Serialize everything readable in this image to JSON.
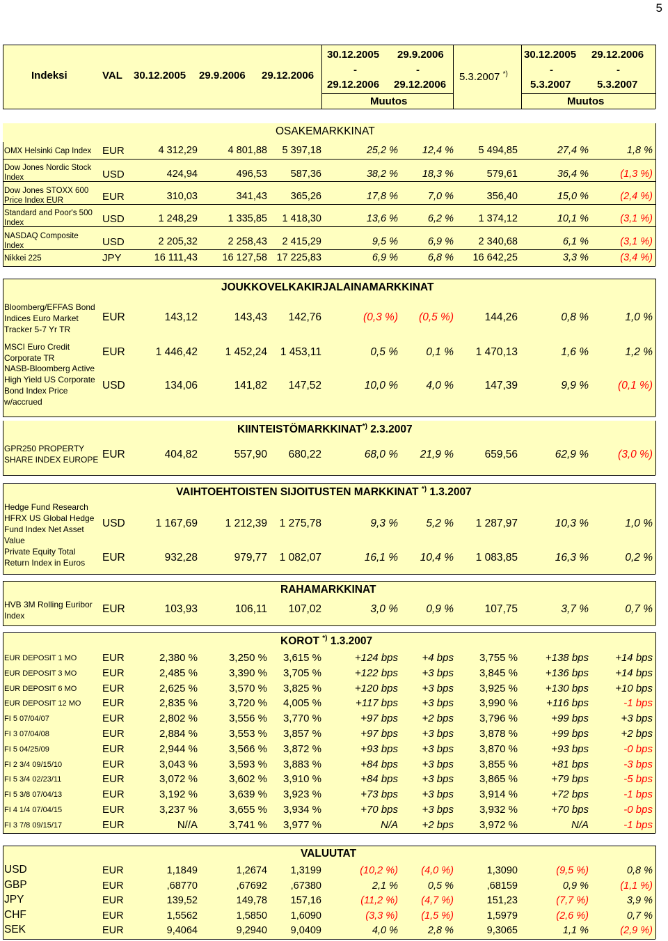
{
  "page_number": "5",
  "header": {
    "indeksi": "Indeksi",
    "val": "VAL",
    "d1": "30.12.2005",
    "d2": "29.9.2006",
    "d3": "29.12.2006",
    "range1_top": "30.12.2005",
    "range1_dash": "-",
    "range1_bottom": "29.12.2006",
    "range2_top": "29.9.2006",
    "range2_dash": "-",
    "range2_bottom": "29.12.2006",
    "mid_date": "5.3.2007",
    "mid_sup": "*)",
    "range3_top": "30.12.2005",
    "range3_dash": "-",
    "range3_bottom": "5.3.2007",
    "range4_top": "29.12.2006",
    "range4_dash": "-",
    "range4_bottom": "5.3.2007",
    "muutos1": "Muutos",
    "muutos2": "Muutos"
  },
  "sections": {
    "osake": "OSAKEMARKKINAT",
    "joukko": "JOUKKOVELKAKIRJALAINAMARKKINAT",
    "kiint": "KIINTEISTÖMARKKINAT",
    "kiint_sup": "*)",
    "kiint_date": "2.3.2007",
    "vaiht": "VAIHTOEHTOISTEN SIJOITUSTEN MARKKINAT",
    "vaiht_sup": "*)",
    "vaiht_date": "1.3.2007",
    "raha": "RAHAMARKKINAT",
    "korot": "KOROT",
    "korot_sup": "*)",
    "korot_date": "1.3.2007",
    "valuutat": "VALUUTAT"
  },
  "osake_rows": [
    {
      "name1": "OMX Helsinki Cap Index",
      "name2": "",
      "cur": "EUR",
      "v1": "4 312,29",
      "v2": "4 801,88",
      "v3": "5 397,18",
      "p1": "25,2 %",
      "p2": "12,4 %",
      "v4": "5 494,85",
      "p3": "27,4 %",
      "p4": "1,8 %",
      "neg4": false
    },
    {
      "name1": "Dow Jones Nordic Stock",
      "name2": "Index",
      "cur": "USD",
      "v1": "424,94",
      "v2": "496,53",
      "v3": "587,36",
      "p1": "38,2 %",
      "p2": "18,3 %",
      "v4": "579,61",
      "p3": "36,4 %",
      "p4": "(1,3 %)",
      "neg4": true
    },
    {
      "name1": "Dow Jones STOXX 600",
      "name2": "Price Index EUR",
      "cur": "EUR",
      "v1": "310,03",
      "v2": "341,43",
      "v3": "365,26",
      "p1": "17,8 %",
      "p2": "7,0 %",
      "v4": "356,40",
      "p3": "15,0 %",
      "p4": "(2,4 %)",
      "neg4": true
    },
    {
      "name1": "Standard and Poor's 500",
      "name2": "Index",
      "cur": "USD",
      "v1": "1 248,29",
      "v2": "1 335,85",
      "v3": "1 418,30",
      "p1": "13,6 %",
      "p2": "6,2 %",
      "v4": "1 374,12",
      "p3": "10,1 %",
      "p4": "(3,1 %)",
      "neg4": true
    },
    {
      "name1": "NASDAQ Composite",
      "name2": "Index",
      "cur": "USD",
      "v1": "2 205,32",
      "v2": "2 258,43",
      "v3": "2 415,29",
      "p1": "9,5 %",
      "p2": "6,9 %",
      "v4": "2 340,68",
      "p3": "6,1 %",
      "p4": "(3,1 %)",
      "neg4": true
    },
    {
      "name1": "Nikkei 225",
      "name2": "",
      "cur": "JPY",
      "v1": "16 111,43",
      "v2": "16 127,58",
      "v3": "17 225,83",
      "p1": "6,9 %",
      "p2": "6,8 %",
      "v4": "16 642,25",
      "p3": "3,3 %",
      "p4": "(3,4 %)",
      "neg4": true
    }
  ],
  "joukko_rows": [
    {
      "names": [
        "Bloomberg/EFFAS Bond",
        "Indices Euro Market",
        "Tracker 5-7 Yr TR"
      ],
      "cur": "EUR",
      "v1": "143,12",
      "v2": "143,43",
      "v3": "142,76",
      "p1": "(0,3 %)",
      "p2": "(0,5 %)",
      "v4": "144,26",
      "p3": "0,8 %",
      "p4": "1,0 %",
      "neg1": true,
      "neg2": true,
      "neg4": false
    },
    {
      "names": [
        "MSCI Euro Credit",
        "Corporate TR"
      ],
      "cur": "EUR",
      "v1": "1 446,42",
      "v2": "1 452,24",
      "v3": "1 453,11",
      "p1": "0,5 %",
      "p2": "0,1 %",
      "v4": "1 470,13",
      "p3": "1,6 %",
      "p4": "1,2 %",
      "neg1": false,
      "neg2": false,
      "neg4": false
    },
    {
      "names": [
        "NASB-Bloomberg Active",
        "High Yield US Corporate",
        "Bond Index Price",
        "w/accrued"
      ],
      "cur": "USD",
      "v1": "134,06",
      "v2": "141,82",
      "v3": "147,52",
      "p1": "10,0 %",
      "p2": "4,0 %",
      "v4": "147,39",
      "p3": "9,9 %",
      "p4": "(0,1 %)",
      "neg1": false,
      "neg2": false,
      "neg4": true
    }
  ],
  "kiint_rows": [
    {
      "names": [
        "GPR250 PROPERTY",
        "SHARE INDEX EUROPE"
      ],
      "cur": "EUR",
      "v1": "404,82",
      "v2": "557,90",
      "v3": "680,22",
      "p1": "68,0 %",
      "p2": "21,9 %",
      "v4": "659,56",
      "p3": "62,9 %",
      "p4": "(3,0 %)",
      "neg4": true
    }
  ],
  "vaiht_rows": [
    {
      "names": [
        "Hedge Fund Research",
        "HFRX US Global Hedge",
        "Fund Index Net Asset",
        "Value"
      ],
      "cur": "USD",
      "v1": "1 167,69",
      "v2": "1 212,39",
      "v3": "1 275,78",
      "p1": "9,3 %",
      "p2": "5,2 %",
      "v4": "1 287,97",
      "p3": "10,3 %",
      "p4": "1,0 %",
      "neg4": false
    },
    {
      "names": [
        "Private Equity Total",
        "Return Index in Euros"
      ],
      "cur": "EUR",
      "v1": "932,28",
      "v2": "979,77",
      "v3": "1 082,07",
      "p1": "16,1 %",
      "p2": "10,4 %",
      "v4": "1 083,85",
      "p3": "16,3 %",
      "p4": "0,2 %",
      "neg4": false
    }
  ],
  "raha_rows": [
    {
      "names": [
        "HVB 3M Rolling Euribor",
        "Index"
      ],
      "cur": "EUR",
      "v1": "103,93",
      "v2": "106,11",
      "v3": "107,02",
      "p1": "3,0 %",
      "p2": "0,9 %",
      "v4": "107,75",
      "p3": "3,7 %",
      "p4": "0,7 %",
      "neg4": false
    }
  ],
  "korot_rows": [
    {
      "name": "EUR DEPOSIT 1 MO",
      "cur": "EUR",
      "v1": "2,380 %",
      "v2": "3,250 %",
      "v3": "3,615 %",
      "p1": "+124 bps",
      "p2": "+4 bps",
      "v4": "3,755 %",
      "p3": "+138 bps",
      "p4": "+14 bps",
      "neg4": false
    },
    {
      "name": "EUR DEPOSIT 3 MO",
      "cur": "EUR",
      "v1": "2,485 %",
      "v2": "3,390 %",
      "v3": "3,705 %",
      "p1": "+122 bps",
      "p2": "+3 bps",
      "v4": "3,845 %",
      "p3": "+136 bps",
      "p4": "+14 bps",
      "neg4": false
    },
    {
      "name": "EUR DEPOSIT 6 MO",
      "cur": "EUR",
      "v1": "2,625 %",
      "v2": "3,570 %",
      "v3": "3,825 %",
      "p1": "+120 bps",
      "p2": "+3 bps",
      "v4": "3,925 %",
      "p3": "+130 bps",
      "p4": "+10 bps",
      "neg4": false
    },
    {
      "name": "EUR DEPOSIT 12 MO",
      "cur": "EUR",
      "v1": "2,835 %",
      "v2": "3,720 %",
      "v3": "4,005 %",
      "p1": "+117 bps",
      "p2": "+3 bps",
      "v4": "3,990 %",
      "p3": "+116 bps",
      "p4": "-1 bps",
      "neg4": true
    },
    {
      "name": "FI 5 07/04/07",
      "cur": "EUR",
      "v1": "2,802 %",
      "v2": "3,556 %",
      "v3": "3,770 %",
      "p1": "+97 bps",
      "p2": "+2 bps",
      "v4": "3,796 %",
      "p3": "+99 bps",
      "p4": "+3 bps",
      "neg4": false
    },
    {
      "name": "FI 3 07/04/08",
      "cur": "EUR",
      "v1": "2,884 %",
      "v2": "3,553 %",
      "v3": "3,857 %",
      "p1": "+97 bps",
      "p2": "+3 bps",
      "v4": "3,878 %",
      "p3": "+99 bps",
      "p4": "+2 bps",
      "neg4": false
    },
    {
      "name": "FI 5 04/25/09",
      "cur": "EUR",
      "v1": "2,944 %",
      "v2": "3,566 %",
      "v3": "3,872 %",
      "p1": "+93 bps",
      "p2": "+3 bps",
      "v4": "3,870 %",
      "p3": "+93 bps",
      "p4": "-0 bps",
      "neg4": true
    },
    {
      "name": "FI 2 3/4 09/15/10",
      "cur": "EUR",
      "v1": "3,043 %",
      "v2": "3,593 %",
      "v3": "3,883 %",
      "p1": "+84 bps",
      "p2": "+3 bps",
      "v4": "3,855 %",
      "p3": "+81 bps",
      "p4": "-3 bps",
      "neg4": true
    },
    {
      "name": "FI 5 3/4 02/23/11",
      "cur": "EUR",
      "v1": "3,072 %",
      "v2": "3,602 %",
      "v3": "3,910 %",
      "p1": "+84 bps",
      "p2": "+3 bps",
      "v4": "3,865 %",
      "p3": "+79 bps",
      "p4": "-5 bps",
      "neg4": true
    },
    {
      "name": "FI 5 3/8 07/04/13",
      "cur": "EUR",
      "v1": "3,192 %",
      "v2": "3,639 %",
      "v3": "3,923 %",
      "p1": "+73 bps",
      "p2": "+3 bps",
      "v4": "3,914 %",
      "p3": "+72 bps",
      "p4": "-1 bps",
      "neg4": true
    },
    {
      "name": "FI 4 1/4 07/04/15",
      "cur": "EUR",
      "v1": "3,237 %",
      "v2": "3,655 %",
      "v3": "3,934 %",
      "p1": "+70 bps",
      "p2": "+3 bps",
      "v4": "3,932 %",
      "p3": "+70 bps",
      "p4": "-0 bps",
      "neg4": true
    },
    {
      "name": "FI 3 7/8 09/15/17",
      "cur": "EUR",
      "v1": "N//A",
      "v2": "3,741 %",
      "v3": "3,977 %",
      "p1": "N/A",
      "p2": "+2 bps",
      "v4": "3,972 %",
      "p3": "N/A",
      "p4": "-1 bps",
      "neg4": true
    }
  ],
  "valuutat_rows": [
    {
      "name": "USD",
      "cur": "EUR",
      "v1": "1,1849",
      "v2": "1,2674",
      "v3": "1,3199",
      "p1": "(10,2 %)",
      "p2": "(4,0 %)",
      "v4": "1,3090",
      "p3": "(9,5 %)",
      "p4": "0,8 %",
      "neg1": true,
      "neg2": true,
      "neg3": true,
      "neg4": false
    },
    {
      "name": "GBP",
      "cur": "EUR",
      "v1": ",68770",
      "v2": ",67692",
      "v3": ",67380",
      "p1": "2,1 %",
      "p2": "0,5 %",
      "v4": ",68159",
      "p3": "0,9 %",
      "p4": "(1,1 %)",
      "neg1": false,
      "neg2": false,
      "neg3": false,
      "neg4": true
    },
    {
      "name": "JPY",
      "cur": "EUR",
      "v1": "139,52",
      "v2": "149,78",
      "v3": "157,16",
      "p1": "(11,2 %)",
      "p2": "(4,7 %)",
      "v4": "151,23",
      "p3": "(7,7 %)",
      "p4": "3,9 %",
      "neg1": true,
      "neg2": true,
      "neg3": true,
      "neg4": false
    },
    {
      "name": "CHF",
      "cur": "EUR",
      "v1": "1,5562",
      "v2": "1,5850",
      "v3": "1,6090",
      "p1": "(3,3 %)",
      "p2": "(1,5 %)",
      "v4": "1,5979",
      "p3": "(2,6 %)",
      "p4": "0,7 %",
      "neg1": true,
      "neg2": true,
      "neg3": true,
      "neg4": false
    },
    {
      "name": "SEK",
      "cur": "EUR",
      "v1": "9,4064",
      "v2": "9,2940",
      "v3": "9,0409",
      "p1": "4,0 %",
      "p2": "2,8 %",
      "v4": "9,3065",
      "p3": "1,1 %",
      "p4": "(2,9 %)",
      "neg1": false,
      "neg2": false,
      "neg3": false,
      "neg4": true
    }
  ]
}
